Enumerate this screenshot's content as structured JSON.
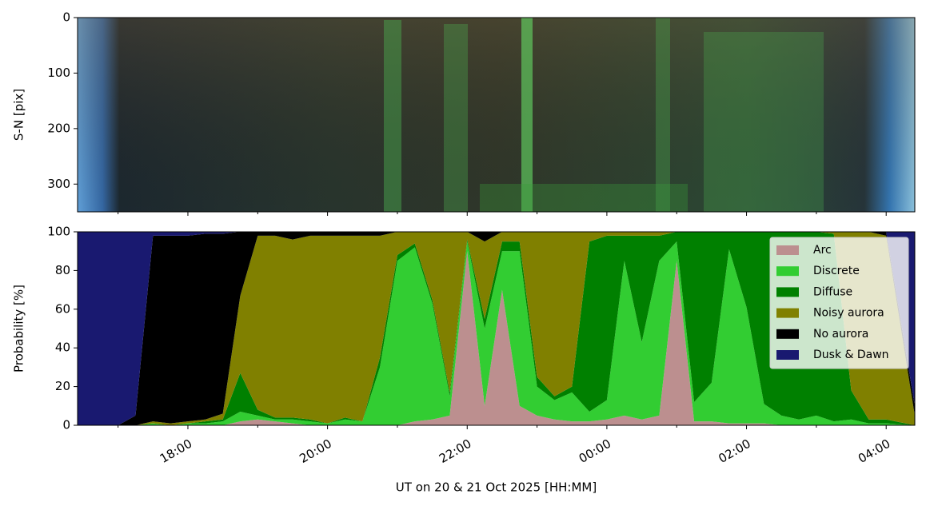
{
  "chart_data": [
    {
      "type": "image",
      "ylabel": "S-N [pix]",
      "ylim": [
        350,
        0
      ],
      "yticks": [
        0,
        100,
        200,
        300
      ]
    },
    {
      "type": "stackedarea",
      "ylabel": "Probability [%]",
      "xlabel": "UT on 20 & 21 Oct 2025 [HH:MM]",
      "xlim": [
        16.42,
        28.41
      ],
      "xticks": [
        {
          "value": 18,
          "label": "18:00"
        },
        {
          "value": 20,
          "label": "20:00"
        },
        {
          "value": 22,
          "label": "22:00"
        },
        {
          "value": 24,
          "label": "00:00"
        },
        {
          "value": 26,
          "label": "02:00"
        },
        {
          "value": 28,
          "label": "04:00"
        }
      ],
      "xminorticks": [
        17,
        19,
        21,
        23,
        25,
        27
      ],
      "ylim": [
        0,
        100
      ],
      "yticks": [
        0,
        20,
        40,
        60,
        80,
        100
      ],
      "legend": "upper right",
      "x": [
        16.42,
        16.75,
        17.0,
        17.25,
        17.5,
        17.75,
        18.0,
        18.25,
        18.5,
        18.75,
        19.0,
        19.25,
        19.5,
        19.75,
        20.0,
        20.25,
        20.5,
        20.75,
        21.0,
        21.25,
        21.5,
        21.75,
        22.0,
        22.25,
        22.5,
        22.75,
        23.0,
        23.25,
        23.5,
        23.75,
        24.0,
        24.25,
        24.5,
        24.75,
        25.0,
        25.25,
        25.5,
        25.75,
        26.0,
        26.25,
        26.5,
        26.75,
        27.0,
        27.25,
        27.5,
        27.75,
        28.0,
        28.41
      ],
      "series": [
        {
          "name": "Arc",
          "color": "#bc8f8f",
          "values": [
            0,
            0,
            0,
            0,
            0,
            0,
            0,
            0,
            0,
            2,
            3,
            2,
            1,
            0,
            0,
            0,
            0,
            0,
            0,
            2,
            3,
            5,
            90,
            10,
            70,
            10,
            5,
            3,
            2,
            2,
            3,
            5,
            3,
            5,
            85,
            2,
            2,
            1,
            1,
            1,
            0,
            0,
            0,
            0,
            0,
            0,
            0,
            0
          ]
        },
        {
          "name": "Discrete",
          "color": "#32cd32",
          "values": [
            0,
            0,
            0,
            0,
            1,
            0,
            1,
            1,
            2,
            5,
            2,
            1,
            2,
            2,
            1,
            3,
            2,
            30,
            85,
            90,
            60,
            10,
            5,
            40,
            20,
            80,
            15,
            10,
            15,
            5,
            10,
            80,
            40,
            80,
            10,
            10,
            20,
            90,
            60,
            10,
            5,
            3,
            5,
            2,
            3,
            1,
            1,
            0
          ]
        },
        {
          "name": "Diffuse",
          "color": "#008000",
          "values": [
            0,
            0,
            0,
            0,
            0,
            0,
            0,
            1,
            1,
            20,
            3,
            1,
            1,
            1,
            0,
            1,
            0,
            5,
            3,
            2,
            2,
            2,
            1,
            5,
            5,
            5,
            5,
            2,
            3,
            88,
            85,
            13,
            55,
            13,
            5,
            88,
            78,
            9,
            39,
            89,
            95,
            97,
            95,
            97,
            15,
            2,
            2,
            0
          ]
        },
        {
          "name": "Noisy aurora",
          "color": "#808000",
          "values": [
            0,
            0,
            0,
            0,
            1,
            1,
            1,
            1,
            3,
            40,
            90,
            94,
            92,
            95,
            97,
            94,
            96,
            63,
            12,
            6,
            35,
            83,
            4,
            40,
            5,
            5,
            75,
            85,
            80,
            5,
            2,
            2,
            2,
            2,
            0,
            0,
            0,
            0,
            0,
            0,
            0,
            0,
            0,
            1,
            82,
            97,
            95,
            5
          ]
        },
        {
          "name": "No aurora",
          "color": "#000000",
          "values": [
            0,
            0,
            0,
            5,
            96,
            97,
            96,
            96,
            93,
            33,
            2,
            2,
            4,
            2,
            2,
            2,
            2,
            2,
            0,
            0,
            0,
            0,
            0,
            5,
            0,
            0,
            0,
            0,
            0,
            0,
            0,
            0,
            0,
            0,
            0,
            0,
            0,
            0,
            0,
            0,
            0,
            0,
            0,
            0,
            0,
            0,
            2,
            5
          ]
        },
        {
          "name": "Dusk & Dawn",
          "color": "#191970",
          "values": [
            100,
            100,
            100,
            95,
            2,
            2,
            2,
            1,
            1,
            0,
            0,
            0,
            0,
            0,
            0,
            0,
            0,
            0,
            0,
            0,
            0,
            0,
            0,
            0,
            0,
            0,
            0,
            0,
            0,
            0,
            0,
            0,
            0,
            0,
            0,
            0,
            0,
            0,
            0,
            0,
            0,
            0,
            0,
            0,
            0,
            0,
            0,
            90
          ]
        }
      ]
    }
  ]
}
